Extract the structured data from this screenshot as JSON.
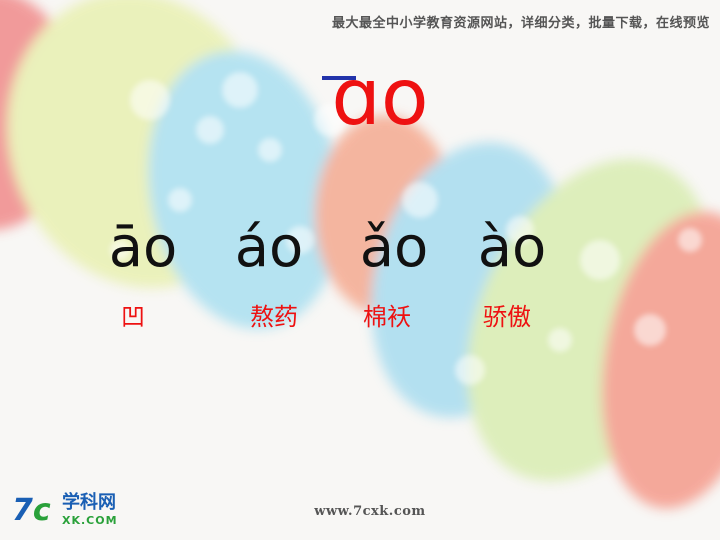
{
  "header": {
    "text": "最大最全中小学教育资源网站，详细分类，批量下载，在线预览"
  },
  "main_syllable": {
    "text": "ɑo"
  },
  "tones": [
    {
      "syllable": "āo",
      "word": "凹"
    },
    {
      "syllable": "áo",
      "word": "熬药"
    },
    {
      "syllable": "ǎo",
      "word": "棉袄"
    },
    {
      "syllable": "ào",
      "word": "骄傲"
    }
  ],
  "logo": {
    "mark_digit": "7",
    "mark_letter": "c",
    "name": "学科网",
    "domain": "XK.COM"
  },
  "footer": {
    "url": "www.7cxk.com"
  },
  "colors": {
    "syllable_red": "#ee1111",
    "tone_black": "#111111",
    "macron_blue": "#2233aa",
    "logo_blue": "#1a5fb4",
    "logo_green": "#2aa13a"
  }
}
